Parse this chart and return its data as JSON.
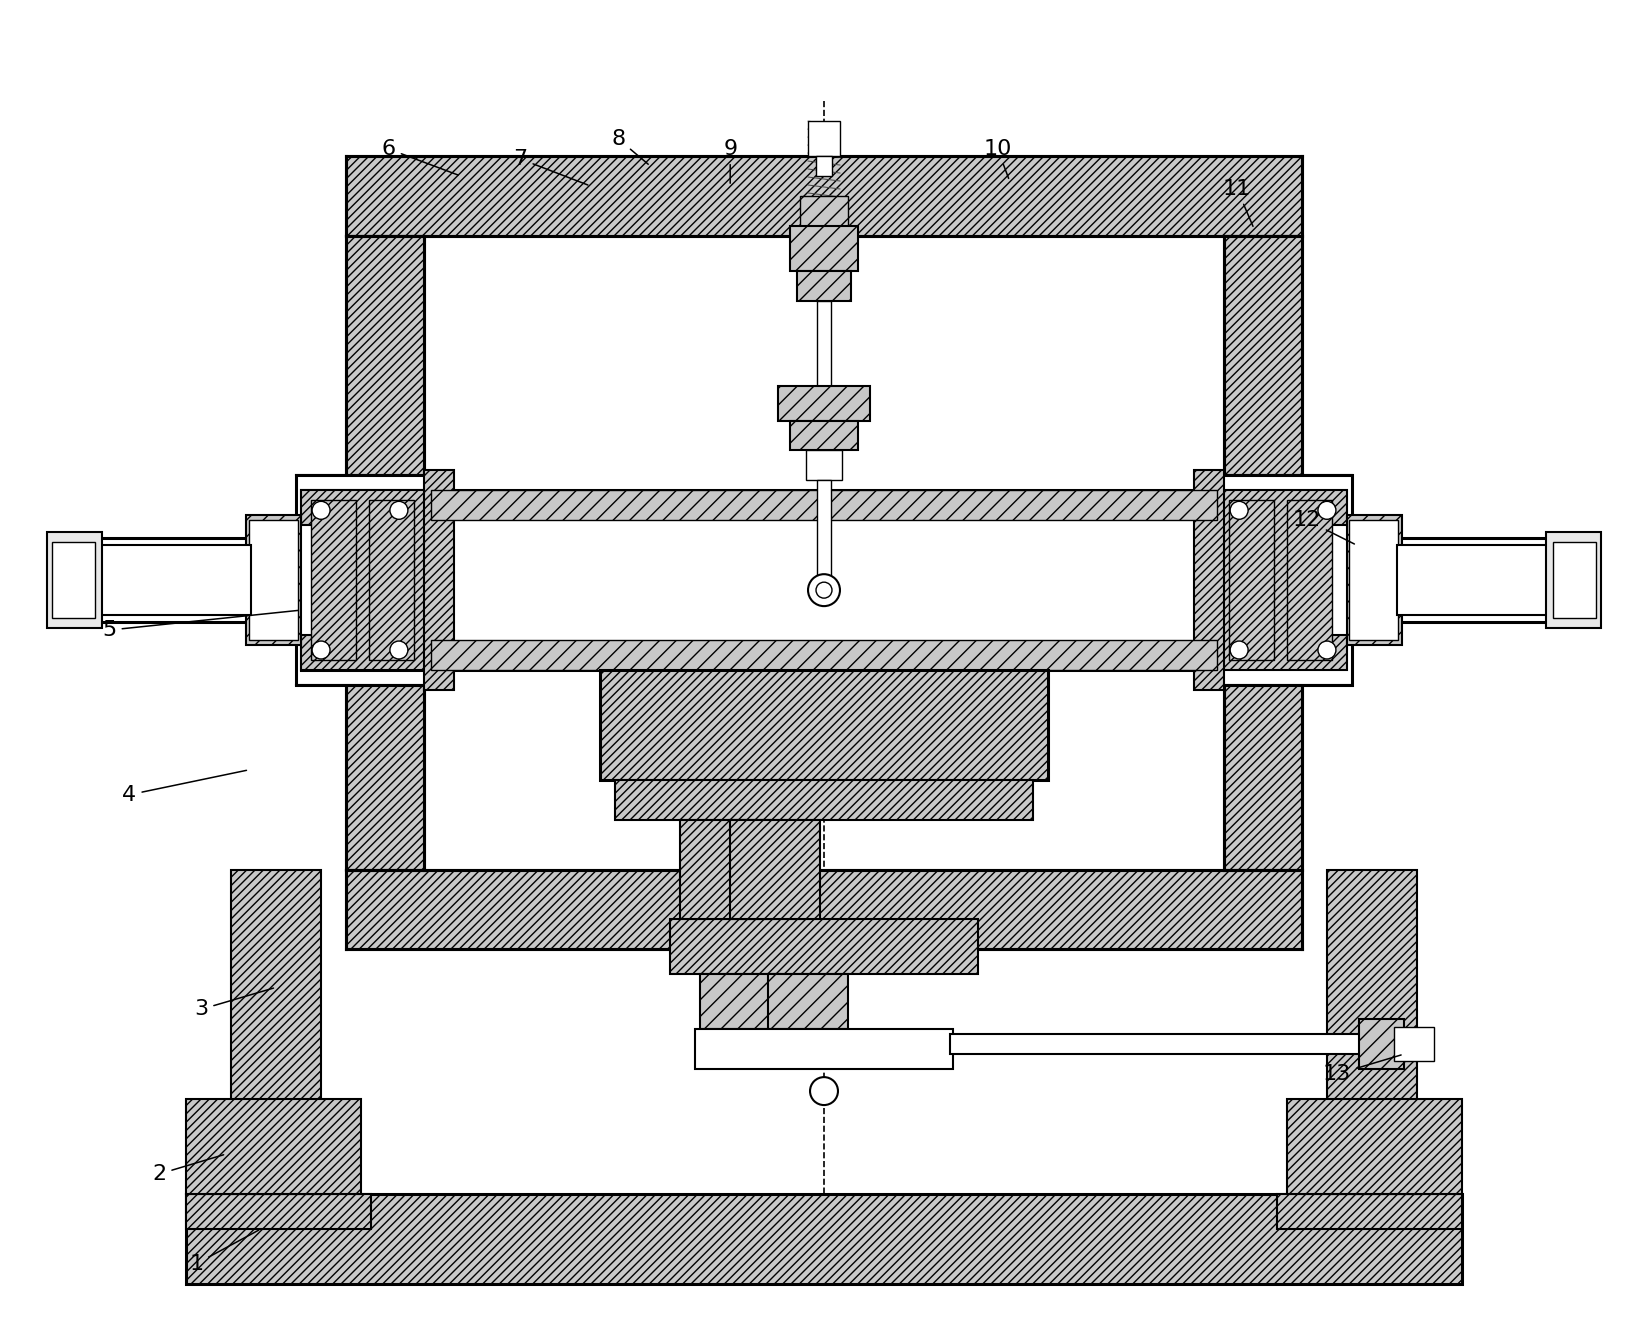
{
  "bg_color": "#ffffff",
  "line_color": "#000000",
  "figsize": [
    16.48,
    13.21
  ],
  "dpi": 100,
  "label_fontsize": 16
}
